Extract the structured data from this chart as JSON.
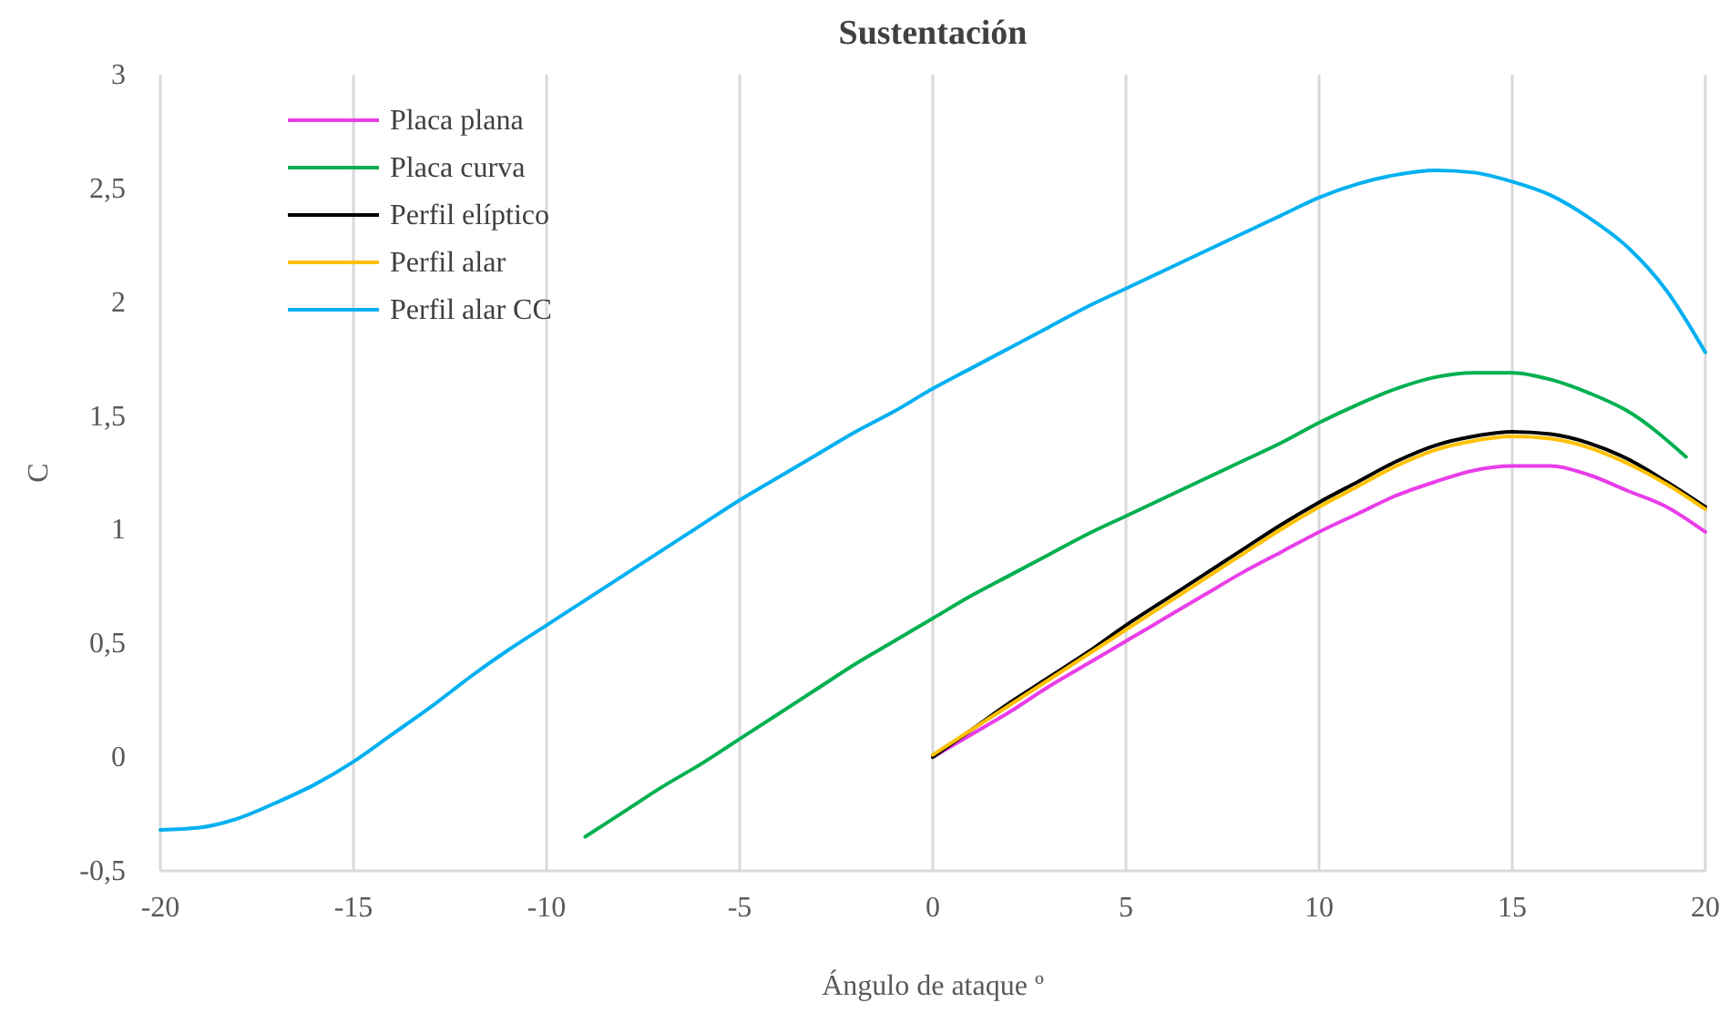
{
  "chart_data": {
    "type": "line",
    "title": "Sustentación",
    "xlabel": "Ángulo de ataque º",
    "ylabel": "C",
    "xlim": [
      -20,
      20
    ],
    "ylim": [
      -0.5,
      3
    ],
    "xticks": [
      -20,
      -15,
      -10,
      -5,
      0,
      5,
      10,
      15,
      20
    ],
    "yticks": [
      {
        "value": -0.5,
        "label": "-0,5"
      },
      0,
      {
        "value": 0.5,
        "label": "0,5"
      },
      1,
      {
        "value": 1.5,
        "label": "1,5"
      },
      2,
      {
        "value": 2.5,
        "label": "2,5"
      },
      3
    ],
    "grid": "x",
    "legend": "top left",
    "marker": "none",
    "line_style": "solid",
    "series": [
      {
        "name": "Placa plana",
        "color": "#e83ee8",
        "x": [
          0,
          1,
          2,
          3,
          4,
          5,
          6,
          7,
          8,
          9,
          10,
          11,
          12,
          13,
          14,
          15,
          16,
          17,
          18,
          19,
          20
        ],
        "values": [
          0,
          0.1,
          0.2,
          0.31,
          0.41,
          0.51,
          0.61,
          0.71,
          0.81,
          0.9,
          0.99,
          1.07,
          1.15,
          1.21,
          1.26,
          1.28,
          1.28,
          1.24,
          1.17,
          1.1,
          0.99
        ]
      },
      {
        "name": "Placa curva",
        "color": "#00b050",
        "x": [
          -9,
          -8,
          -7,
          -6,
          -5,
          -4,
          -3,
          -2,
          -1,
          0,
          1,
          2,
          3,
          4,
          5,
          6,
          7,
          8,
          9,
          10,
          11,
          12,
          13,
          14,
          15,
          16,
          17,
          18,
          19.5
        ],
        "values": [
          -0.35,
          -0.24,
          -0.13,
          -0.03,
          0.08,
          0.19,
          0.3,
          0.41,
          0.51,
          0.61,
          0.71,
          0.8,
          0.89,
          0.98,
          1.06,
          1.14,
          1.22,
          1.3,
          1.38,
          1.47,
          1.55,
          1.62,
          1.67,
          1.69,
          1.69,
          1.66,
          1.6,
          1.52,
          1.32
        ]
      },
      {
        "name": "Perfil elíptico",
        "color": "#000000",
        "x": [
          0,
          1,
          2,
          3,
          4,
          5,
          6,
          7,
          8,
          9,
          10,
          11,
          12,
          13,
          14,
          15,
          16,
          17,
          18,
          19,
          20
        ],
        "values": [
          0,
          0.12,
          0.24,
          0.35,
          0.46,
          0.58,
          0.69,
          0.8,
          0.91,
          1.02,
          1.12,
          1.21,
          1.3,
          1.37,
          1.41,
          1.43,
          1.42,
          1.38,
          1.31,
          1.21,
          1.1
        ]
      },
      {
        "name": "Perfil alar",
        "color": "#ffc000",
        "x": [
          0,
          1,
          2,
          3,
          4,
          5,
          6,
          7,
          8,
          9,
          10,
          11,
          12,
          13,
          14,
          15,
          16,
          17,
          18,
          19,
          20
        ],
        "values": [
          0.01,
          0.12,
          0.23,
          0.34,
          0.45,
          0.56,
          0.67,
          0.78,
          0.89,
          1,
          1.1,
          1.19,
          1.28,
          1.35,
          1.39,
          1.41,
          1.4,
          1.36,
          1.29,
          1.2,
          1.09
        ]
      },
      {
        "name": "Perfil alar CC",
        "color": "#00b0f0",
        "x": [
          -20,
          -19,
          -18,
          -17,
          -16,
          -15,
          -14,
          -13,
          -12,
          -11,
          -10,
          -9,
          -8,
          -7,
          -6,
          -5,
          -4,
          -3,
          -2,
          -1,
          0,
          1,
          2,
          3,
          4,
          5,
          6,
          7,
          8,
          9,
          10,
          11,
          12,
          13,
          14,
          15,
          16,
          17,
          18,
          19,
          20
        ],
        "values": [
          -0.32,
          -0.31,
          -0.27,
          -0.2,
          -0.12,
          -0.02,
          0.1,
          0.22,
          0.35,
          0.47,
          0.58,
          0.69,
          0.8,
          0.91,
          1.02,
          1.13,
          1.23,
          1.33,
          1.43,
          1.52,
          1.62,
          1.71,
          1.8,
          1.89,
          1.98,
          2.06,
          2.14,
          2.22,
          2.3,
          2.38,
          2.46,
          2.52,
          2.56,
          2.58,
          2.57,
          2.53,
          2.47,
          2.37,
          2.24,
          2.05,
          1.78
        ]
      }
    ]
  }
}
